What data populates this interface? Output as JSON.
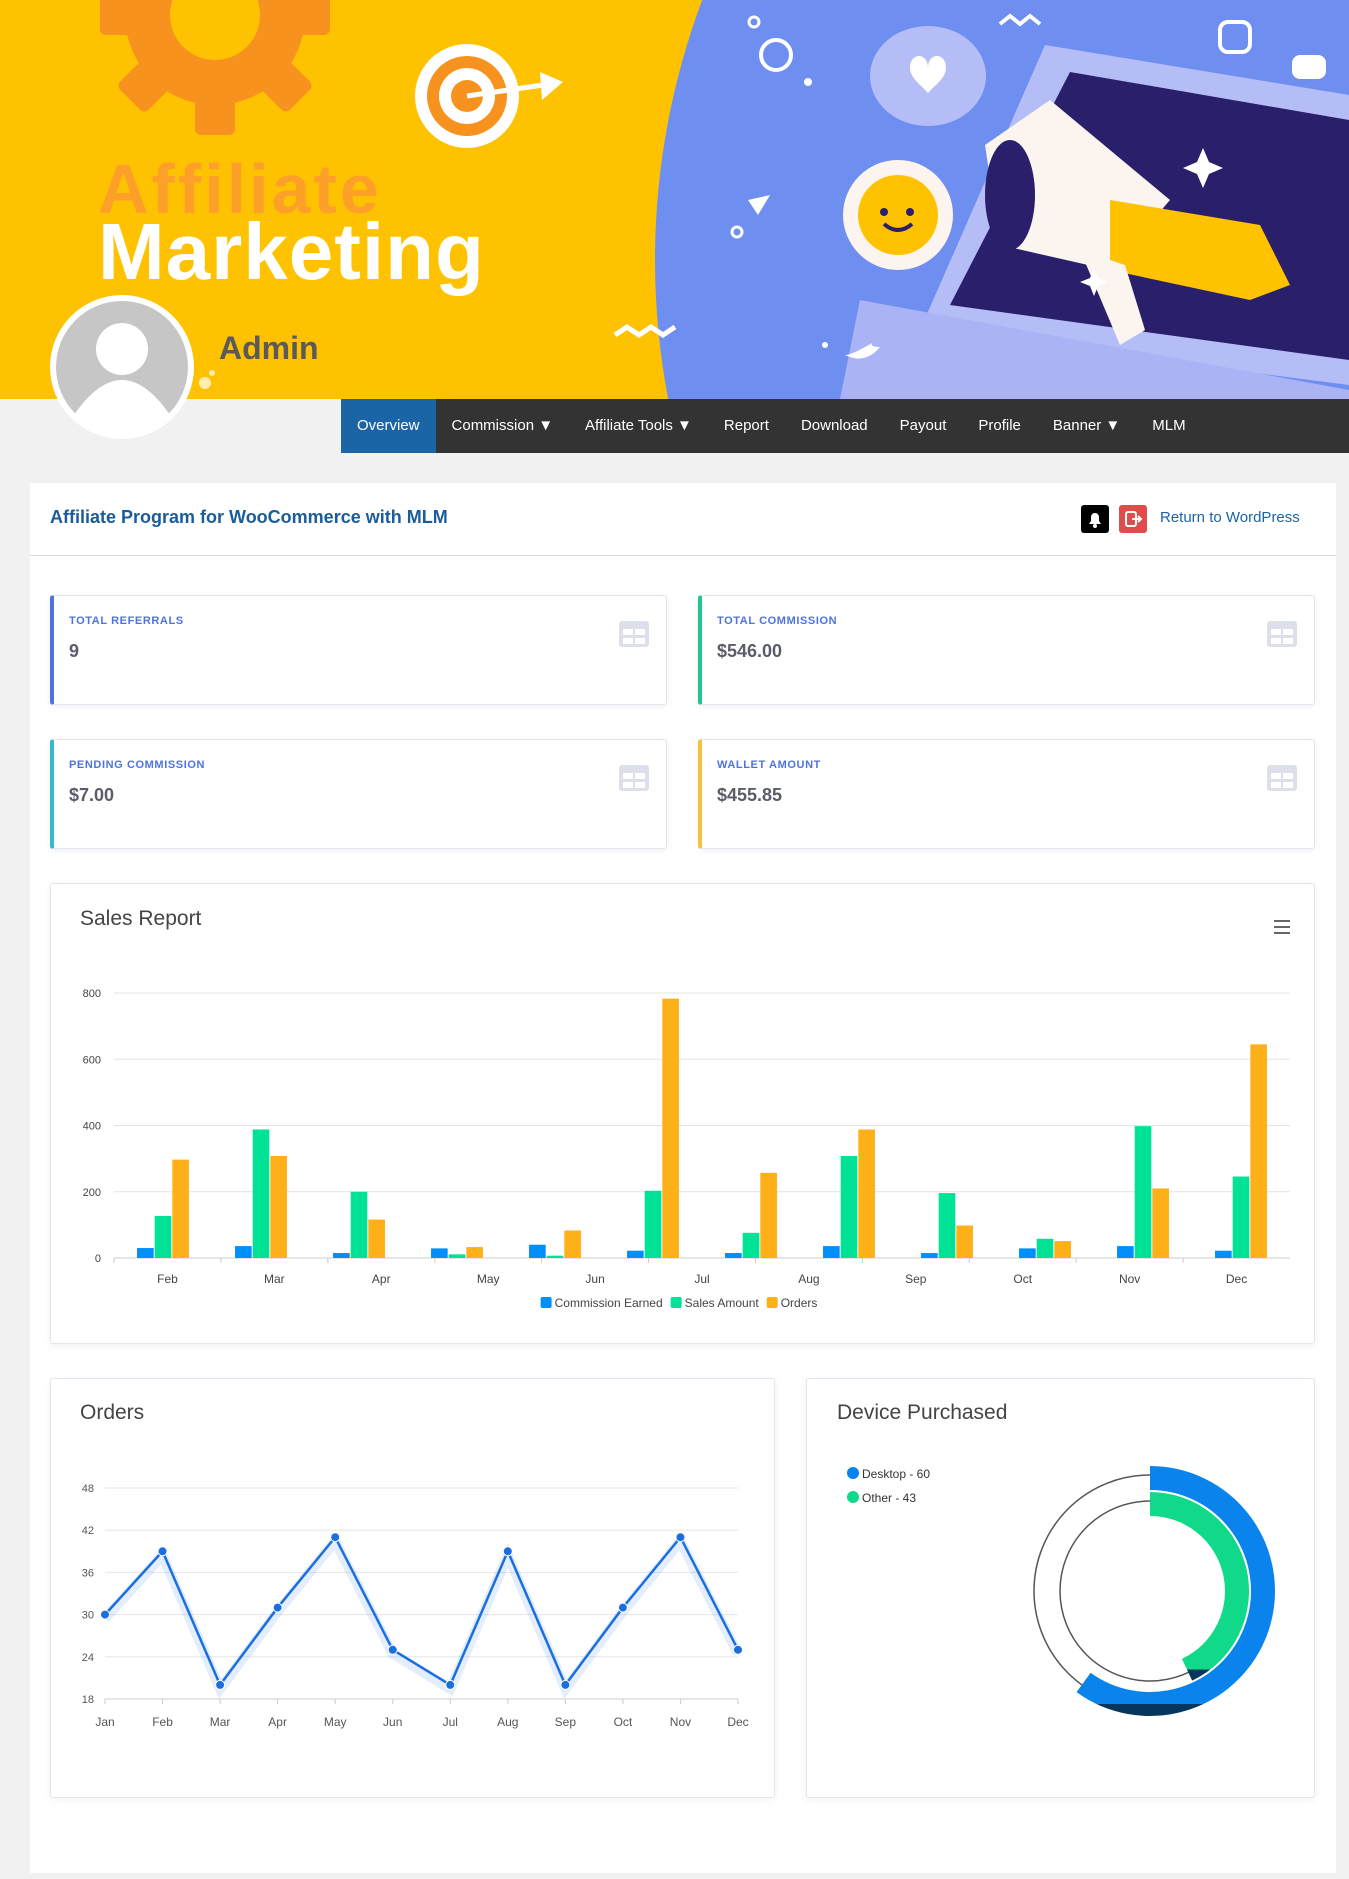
{
  "header": {
    "banner_text": [
      "Affiliate",
      "Marketing"
    ],
    "user": "Admin"
  },
  "nav": {
    "items": [
      "Overview",
      "Commission ▼",
      "Affiliate Tools ▼",
      "Report",
      "Download",
      "Payout",
      "Profile",
      "Banner ▼",
      "MLM"
    ]
  },
  "panel": {
    "title": "Affiliate Program for WooCommerce with MLM",
    "return_link": "Return to WordPress"
  },
  "stats": [
    {
      "label": "TOTAL REFERRALS",
      "value": "9"
    },
    {
      "label": "TOTAL COMMISSION",
      "value": "$546.00"
    },
    {
      "label": "PENDING COMMISSION",
      "value": "$7.00"
    },
    {
      "label": "WALLET AMOUNT",
      "value": "$455.85"
    }
  ],
  "chart_data": [
    {
      "type": "bar",
      "title": "Sales Report",
      "categories": [
        "Feb",
        "Mar",
        "Apr",
        "May",
        "Jun",
        "Jul",
        "Aug",
        "Sep",
        "Oct",
        "Nov",
        "Dec",
        null
      ],
      "series": [
        {
          "name": "Commission Earned",
          "color": "#008ffb",
          "values": [
            30,
            36,
            15,
            29,
            40,
            22,
            15,
            36,
            15,
            29,
            36,
            22
          ]
        },
        {
          "name": "Sales Amount",
          "color": "#00e396",
          "values": [
            127,
            388,
            200,
            11,
            7,
            203,
            76,
            308,
            196,
            58,
            398,
            246
          ]
        },
        {
          "name": "Orders",
          "color": "#feb019",
          "values": [
            297,
            308,
            116,
            33,
            83,
            783,
            257,
            388,
            98,
            51,
            210,
            645
          ]
        }
      ],
      "ylim": [
        0,
        800
      ],
      "yticks": [
        0,
        200,
        400,
        600,
        800
      ],
      "grid": true,
      "legend": "bottom"
    },
    {
      "type": "line",
      "title": "Orders",
      "categories": [
        "Jan",
        "Feb",
        "Mar",
        "Apr",
        "May",
        "Jun",
        "Jul",
        "Aug",
        "Sep",
        "Oct",
        "Nov",
        "Dec"
      ],
      "values": [
        30,
        39,
        20,
        31,
        41,
        25,
        20,
        39,
        20,
        31,
        41,
        25
      ],
      "color": "#1a6fe0",
      "ylim": [
        18,
        48
      ],
      "yticks": [
        18,
        24,
        30,
        36,
        42,
        48
      ],
      "grid": true
    },
    {
      "type": "radialBar",
      "title": "Device Purchased",
      "labels": [
        "Desktop - 60",
        "Other - 43"
      ],
      "values": [
        60,
        43
      ],
      "colors": [
        "#0a84ec",
        "#10d98a"
      ],
      "legend": "top-left"
    }
  ]
}
